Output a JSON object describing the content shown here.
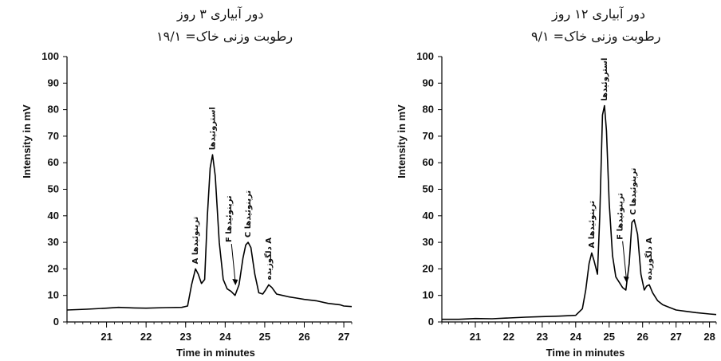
{
  "chart_data": [
    {
      "type": "line",
      "title_lines": [
        "دور آبیاری ۳ روز",
        "رطوبت وزنی خاک= ۱۹/۱"
      ],
      "xlabel": "Time in minutes",
      "ylabel": "Intensity in mV",
      "xlim": [
        20.0,
        27.2
      ],
      "ylim": [
        0,
        100
      ],
      "xticks": [
        21,
        22,
        23,
        24,
        25,
        26,
        27
      ],
      "yticks": [
        0,
        10,
        20,
        30,
        40,
        50,
        60,
        70,
        80,
        90,
        100
      ],
      "grid": false,
      "x": [
        20.0,
        20.5,
        21.0,
        21.3,
        21.7,
        22.0,
        22.5,
        22.9,
        23.05,
        23.15,
        23.25,
        23.32,
        23.4,
        23.48,
        23.55,
        23.62,
        23.68,
        23.75,
        23.85,
        23.95,
        24.05,
        24.15,
        24.25,
        24.35,
        24.45,
        24.52,
        24.58,
        24.65,
        24.75,
        24.85,
        24.95,
        25.02,
        25.1,
        25.18,
        25.3,
        25.45,
        25.6,
        25.8,
        26.0,
        26.3,
        26.6,
        26.9,
        27.0,
        27.2
      ],
      "y": [
        4.5,
        4.8,
        5.2,
        5.5,
        5.3,
        5.2,
        5.4,
        5.5,
        6.0,
        14.0,
        20.0,
        18.0,
        14.5,
        16.0,
        40.0,
        58.0,
        63.0,
        55.0,
        30.0,
        16.0,
        12.5,
        11.5,
        10.0,
        14.0,
        24.0,
        29.0,
        30.0,
        28.0,
        18.0,
        11.0,
        10.5,
        12.0,
        14.0,
        13.0,
        10.5,
        10.0,
        9.5,
        9.0,
        8.5,
        8.0,
        7.0,
        6.5,
        6.0,
        5.8
      ],
      "annotations": [
        {
          "label": "A ترپنوئیدها",
          "x": 23.25,
          "y": 20
        },
        {
          "label": "استروئیدها",
          "x": 23.68,
          "y": 63
        },
        {
          "label": "F ترپنوئیدها",
          "x": 24.2,
          "y": 12
        },
        {
          "label": "C ترپنوئیدها",
          "x": 24.58,
          "y": 30
        },
        {
          "label": "دلگوزیده A",
          "x": 25.1,
          "y": 14
        }
      ]
    },
    {
      "type": "line",
      "title_lines": [
        "دور آبیاری ۱۲ روز",
        "رطوبت وزنی خاک= ۹/۱"
      ],
      "xlabel": "Time in minutes",
      "ylabel": "Intensity in mV",
      "xlim": [
        20.0,
        28.2
      ],
      "ylim": [
        0,
        100
      ],
      "xticks": [
        21,
        22,
        23,
        24,
        25,
        26,
        27,
        28
      ],
      "yticks": [
        0,
        10,
        20,
        30,
        40,
        50,
        60,
        70,
        80,
        90,
        100
      ],
      "grid": false,
      "x": [
        20.0,
        20.5,
        21.0,
        21.5,
        22.0,
        22.5,
        23.0,
        23.5,
        24.0,
        24.2,
        24.3,
        24.4,
        24.48,
        24.55,
        24.65,
        24.72,
        24.8,
        24.86,
        24.92,
        25.0,
        25.1,
        25.2,
        25.3,
        25.4,
        25.5,
        25.6,
        25.68,
        25.75,
        25.85,
        25.95,
        26.05,
        26.12,
        26.2,
        26.3,
        26.45,
        26.6,
        26.8,
        27.0,
        27.3,
        27.6,
        28.0,
        28.2
      ],
      "y": [
        1.0,
        1.0,
        1.3,
        1.2,
        1.5,
        1.8,
        2.0,
        2.2,
        2.5,
        5.0,
        12.0,
        22.0,
        26.0,
        23.0,
        18.0,
        40.0,
        78.0,
        81.5,
        72.0,
        45.0,
        25.0,
        17.0,
        15.0,
        13.0,
        12.0,
        22.0,
        37.5,
        38.5,
        33.0,
        18.0,
        12.0,
        13.5,
        14.0,
        11.0,
        8.0,
        6.5,
        5.5,
        4.5,
        4.0,
        3.5,
        3.0,
        2.8
      ],
      "annotations": [
        {
          "label": "A ترپنوئیدها",
          "x": 24.48,
          "y": 26
        },
        {
          "label": "استروئیدها",
          "x": 24.86,
          "y": 81.5
        },
        {
          "label": "F ترپنوئیدها",
          "x": 25.45,
          "y": 13
        },
        {
          "label": "C ترپنوئیدها",
          "x": 25.72,
          "y": 38.5
        },
        {
          "label": "دلگوزیده A",
          "x": 26.2,
          "y": 14
        }
      ]
    }
  ]
}
